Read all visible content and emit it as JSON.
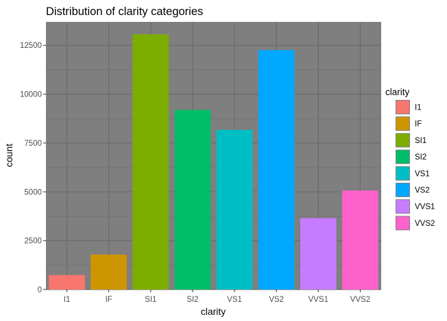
{
  "chart_data": {
    "type": "bar",
    "title": "Distribution of clarity categories",
    "xlabel": "clarity",
    "ylabel": "count",
    "categories": [
      "I1",
      "IF",
      "SI1",
      "SI2",
      "VS1",
      "VS2",
      "VVS1",
      "VVS2"
    ],
    "values": [
      741,
      1790,
      13065,
      9194,
      8171,
      12258,
      3655,
      5066
    ],
    "colors": [
      "#F8766D",
      "#CD9600",
      "#7CAE00",
      "#00BE67",
      "#00BFC4",
      "#00A9FF",
      "#C77CFF",
      "#FF61CC"
    ],
    "ylim": [
      0,
      13700
    ],
    "yticks": [
      0,
      2500,
      5000,
      7500,
      10000,
      12500
    ],
    "ytick_labels": [
      "0",
      "2500",
      "5000",
      "7500",
      "10000",
      "12500"
    ],
    "grid": true,
    "panel_background": "#7f7f7f",
    "grid_color": "#6b6b6b",
    "legend": {
      "title": "clarity",
      "position": "right",
      "entries": [
        "I1",
        "IF",
        "SI1",
        "SI2",
        "VS1",
        "VS2",
        "VVS1",
        "VVS2"
      ]
    }
  }
}
